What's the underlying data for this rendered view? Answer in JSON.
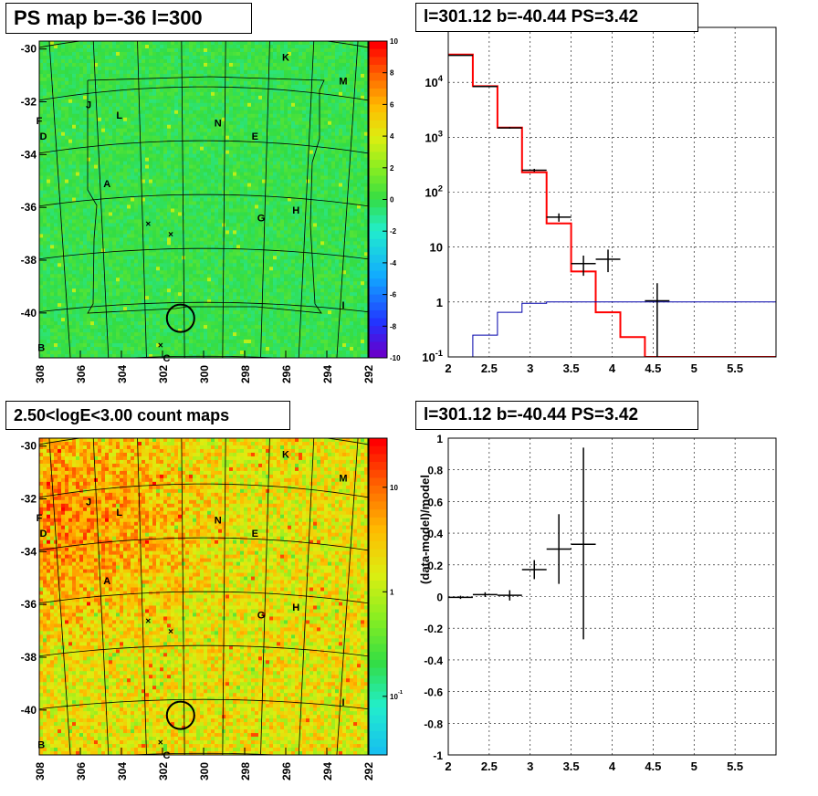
{
  "panels": {
    "tl_title": "PS map b=-36 l=300",
    "tr_title": "l=301.12 b=-40.44 PS=3.42",
    "bl_title": "2.50<logE<3.00 count maps",
    "br_title": "l=301.12 b=-40.44 PS=3.42"
  },
  "chart_data": [
    {
      "type": "heatmap",
      "title": "PS map b=-36 l=300",
      "x_ticks": [
        "308",
        "306",
        "304",
        "302",
        "300",
        "298",
        "296",
        "294",
        "292"
      ],
      "y_ticks": [
        "-30",
        "-32",
        "-34",
        "-36",
        "-38",
        "-40"
      ],
      "xlim": [
        308,
        292
      ],
      "ylim": [
        -41.7,
        -29.7
      ],
      "colorbar": {
        "range": [
          -10,
          10
        ],
        "ticks": [
          "10",
          "8",
          "6",
          "4",
          "2",
          "0",
          "-2",
          "-4",
          "-6",
          "-8",
          "-10"
        ]
      },
      "source_labels": [
        "K",
        "M",
        "J",
        "L",
        "N",
        "E",
        "F",
        "D",
        "A",
        "H",
        "G",
        "I",
        "B",
        "C"
      ],
      "circle_center": [
        301.12,
        -40.2
      ],
      "colors": {
        "base": "#33dd44",
        "circle": "#000000"
      }
    },
    {
      "type": "line",
      "title": "l=301.12 b=-40.44 PS=3.42",
      "xlim": [
        2,
        6
      ],
      "ylim_log": [
        0.1,
        100000
      ],
      "x_ticks": [
        "2",
        "2.5",
        "3",
        "3.5",
        "4",
        "4.5",
        "5",
        "5.5"
      ],
      "y_ticks": [
        "10^-1",
        "1",
        "10",
        "10^2",
        "10^3",
        "10^4"
      ],
      "y_tick_values": [
        0.1,
        1,
        10,
        100,
        1000,
        10000
      ],
      "y_scale": "log",
      "bin_edges": [
        2,
        2.3,
        2.6,
        2.9,
        3.2,
        3.5,
        3.8,
        4.1,
        4.4,
        4.7,
        5.0,
        5.3,
        5.6,
        5.9,
        6.0
      ],
      "series": [
        {
          "color": "#ff0000",
          "style": "step",
          "values": [
            32000,
            8500,
            1500,
            230,
            27,
            3.6,
            0.65,
            0.23,
            0.1,
            0.1,
            0.1,
            0.1,
            0.1,
            0.1
          ]
        },
        {
          "color": "#0000aa",
          "style": "step",
          "values": [
            0.05,
            0.25,
            0.65,
            0.95,
            1.0,
            1.0,
            1.0,
            1.0,
            1.0,
            1.0,
            1.0,
            1.0,
            1.0,
            1.0
          ]
        }
      ],
      "data_points": [
        {
          "x": 2.15,
          "xerr": 0.15,
          "y": 31000,
          "ylo": 30500,
          "yhi": 31500
        },
        {
          "x": 2.45,
          "xerr": 0.15,
          "y": 8400,
          "ylo": 8250,
          "yhi": 8550
        },
        {
          "x": 2.75,
          "xerr": 0.15,
          "y": 1480,
          "ylo": 1430,
          "yhi": 1530
        },
        {
          "x": 3.05,
          "xerr": 0.15,
          "y": 250,
          "ylo": 235,
          "yhi": 266
        },
        {
          "x": 3.35,
          "xerr": 0.15,
          "y": 35,
          "ylo": 29,
          "yhi": 41
        },
        {
          "x": 3.65,
          "xerr": 0.15,
          "y": 5,
          "ylo": 3,
          "yhi": 7
        },
        {
          "x": 3.95,
          "xerr": 0.15,
          "y": 6,
          "ylo": 3.5,
          "yhi": 9
        },
        {
          "x": 4.55,
          "xerr": 0.15,
          "y": 1.05,
          "ylo": 0.1,
          "yhi": 2.2
        }
      ]
    },
    {
      "type": "heatmap",
      "title": "2.50<logE<3.00 count maps",
      "x_ticks": [
        "308",
        "306",
        "304",
        "302",
        "300",
        "298",
        "296",
        "294",
        "292"
      ],
      "y_ticks": [
        "-30",
        "-32",
        "-34",
        "-36",
        "-38",
        "-40"
      ],
      "xlim": [
        308,
        292
      ],
      "ylim": [
        -41.7,
        -29.7
      ],
      "colorbar": {
        "scale": "log",
        "ticks": [
          "10",
          "1",
          "10^-1"
        ]
      },
      "source_labels": [
        "K",
        "M",
        "J",
        "L",
        "N",
        "E",
        "F",
        "D",
        "A",
        "H",
        "G",
        "I",
        "B",
        "C"
      ],
      "circle_center": [
        301.12,
        -40.2
      ],
      "colors": {
        "hot": "#ee4411",
        "warm": "#ff8800",
        "cool": "#ffcc22"
      }
    },
    {
      "type": "scatter",
      "title": "l=301.12 b=-40.44 PS=3.42",
      "ylabel": "(data-model)/model",
      "xlim": [
        2,
        6
      ],
      "ylim": [
        -1,
        1
      ],
      "x_ticks": [
        "2",
        "2.5",
        "3",
        "3.5",
        "4",
        "4.5",
        "5",
        "5.5"
      ],
      "y_ticks": [
        "1",
        "0.8",
        "0.6",
        "0.4",
        "0.2",
        "0",
        "-0.2",
        "-0.4",
        "-0.6",
        "-0.8",
        "-1"
      ],
      "data_points": [
        {
          "x": 2.15,
          "xerr": 0.15,
          "y": -0.005,
          "ylo": -0.015,
          "yhi": 0.005
        },
        {
          "x": 2.45,
          "xerr": 0.15,
          "y": 0.012,
          "ylo": -0.003,
          "yhi": 0.027
        },
        {
          "x": 2.75,
          "xerr": 0.15,
          "y": 0.008,
          "ylo": -0.025,
          "yhi": 0.04
        },
        {
          "x": 3.05,
          "xerr": 0.15,
          "y": 0.17,
          "ylo": 0.11,
          "yhi": 0.23
        },
        {
          "x": 3.35,
          "xerr": 0.15,
          "y": 0.3,
          "ylo": 0.08,
          "yhi": 0.52
        },
        {
          "x": 3.65,
          "xerr": 0.15,
          "y": 0.33,
          "ylo": -0.27,
          "yhi": 0.94
        }
      ]
    }
  ]
}
